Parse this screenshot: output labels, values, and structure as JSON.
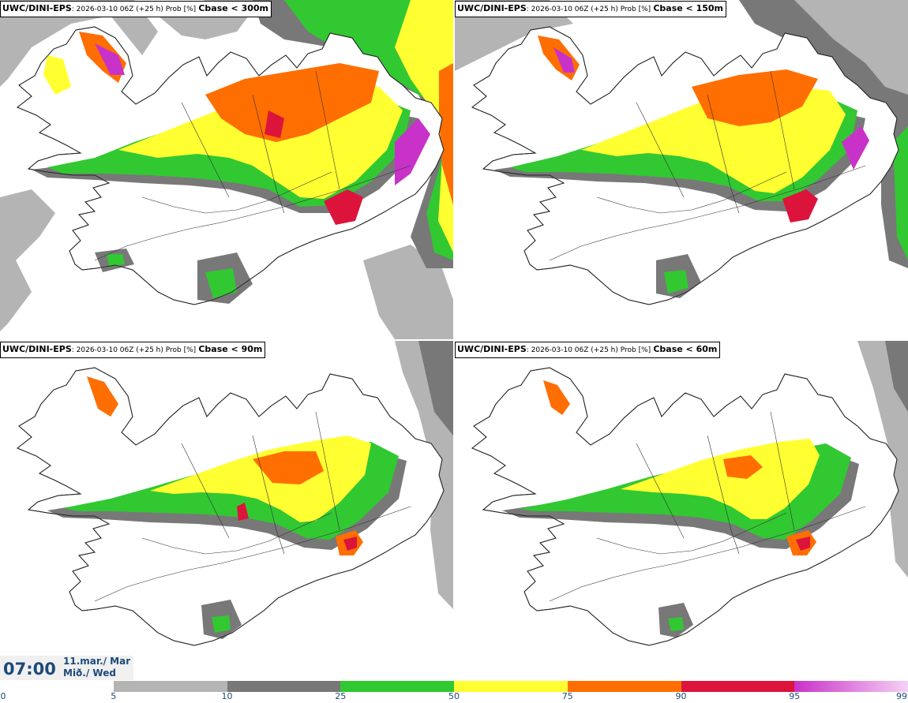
{
  "panels": [
    {
      "model": "UWC/DINI-EPS",
      "meta": ": 2026-03-10 06Z (+25 h) Prob [%]",
      "threshold": "Cbase < 300m"
    },
    {
      "model": "UWC/DINI-EPS",
      "meta": ": 2026-03-10 06Z (+25 h) Prob [%]",
      "threshold": "Cbase < 150m"
    },
    {
      "model": "UWC/DINI-EPS",
      "meta": ": 2026-03-10 06Z (+25 h) Prob [%]",
      "threshold": "Cbase < 90m"
    },
    {
      "model": "UWC/DINI-EPS",
      "meta": ": 2026-03-10 06Z (+25 h) Prob [%]",
      "threshold": "Cbase < 60m"
    }
  ],
  "valid_time": {
    "time": "07:00",
    "date_line1": "11.mar./ Mar",
    "date_line2": "Mið./ Wed"
  },
  "legend": {
    "ticks": [
      "0",
      "5",
      "10",
      "25",
      "50",
      "75",
      "90",
      "95",
      "99"
    ],
    "colors": [
      "#ffffff",
      "#b4b4b4",
      "#787878",
      "#32c832",
      "#ffff32",
      "#ff6e00",
      "#dc143c",
      "#c832c8"
    ],
    "last_gradient_to": "#f5d2f5"
  }
}
